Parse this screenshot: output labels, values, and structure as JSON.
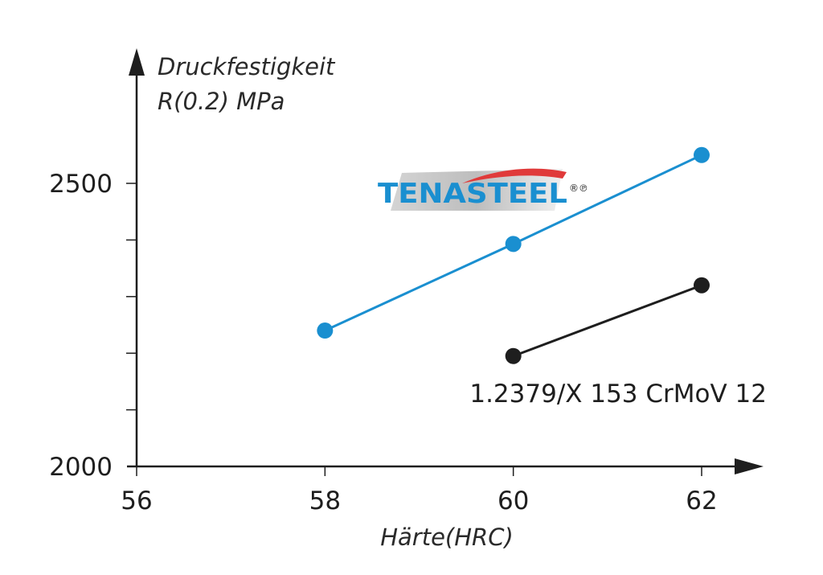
{
  "chart_data": {
    "type": "line",
    "ylabel_line1": "Druckfestigkeit",
    "ylabel_line2": "R(0.2) MPa",
    "xlabel": "Härte(HRC)",
    "xlim": [
      56,
      62.3
    ],
    "ylim": [
      2000,
      2600
    ],
    "x_ticks": [
      56,
      58,
      60,
      62
    ],
    "y_ticks": [
      2000,
      2100,
      2200,
      2300,
      2400,
      2500
    ],
    "y_tick_labels": [
      {
        "value": 2000,
        "text": "2000"
      },
      {
        "value": 2500,
        "text": "2500"
      }
    ],
    "series": [
      {
        "name": "TENASTEEL",
        "color": "#1a8fd0",
        "x": [
          58,
          60,
          62
        ],
        "y": [
          2240,
          2393,
          2550
        ]
      },
      {
        "name": "1.2379/X 153 CrMoV 12",
        "color": "#1e1e1e",
        "x": [
          60,
          62
        ],
        "y": [
          2195,
          2320
        ]
      }
    ],
    "logo": {
      "text": "TENASTEEL",
      "mark": "®℗",
      "text_color": "#1a8fd0",
      "swoosh_color": "#e03a3a"
    },
    "grid": false
  }
}
